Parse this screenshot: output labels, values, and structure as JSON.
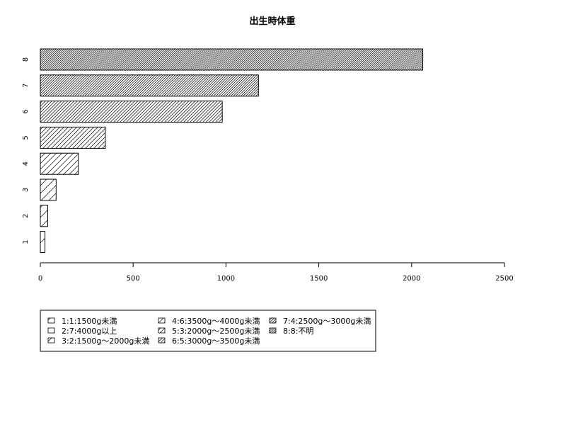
{
  "chart_data": {
    "type": "bar",
    "orientation": "horizontal",
    "title": "出生時体重",
    "xlabel": "",
    "ylabel": "",
    "categories": [
      "1",
      "2",
      "3",
      "4",
      "5",
      "6",
      "7",
      "8"
    ],
    "values": [
      25,
      40,
      85,
      205,
      350,
      980,
      1175,
      2060
    ],
    "xlim": [
      0,
      2500
    ],
    "xticks": [
      "0",
      "500",
      "1000",
      "1500",
      "2000",
      "2500"
    ],
    "grid": false,
    "legend_position": "bottom-left",
    "fill": "hatched",
    "legend": [
      "1:1:1500g未満",
      "2:7:4000g以上",
      "3:2:1500g～2000g未満",
      "4:6:3500g～4000g未満",
      "5:3:2000g～2500g未満",
      "6:5:3000g～3500g未満",
      "7:4:2500g～3000g未満",
      "8:8:不明"
    ]
  }
}
